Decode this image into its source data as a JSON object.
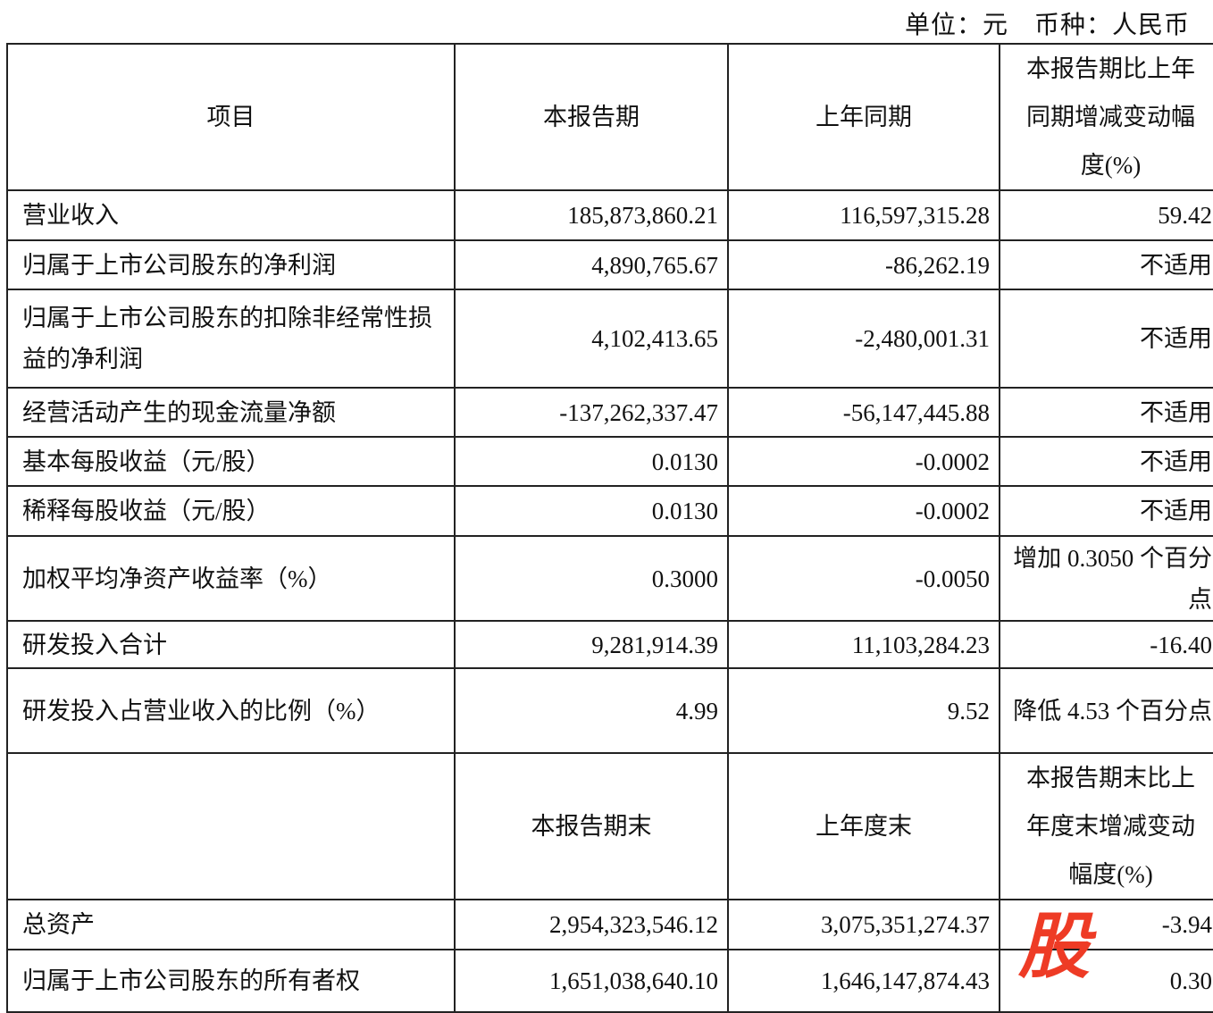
{
  "unit_line": "单位：元　币种：人民币",
  "headers": [
    "项目",
    "本报告期",
    "上年同期",
    "本报告期比上年同期增减变动幅度(%)"
  ],
  "rows": [
    [
      "营业收入",
      "185,873,860.21",
      "116,597,315.28",
      "59.42"
    ],
    [
      "归属于上市公司股东的净利润",
      "4,890,765.67",
      "-86,262.19",
      "不适用"
    ],
    [
      "归属于上市公司股东的扣除非经常性损益的净利润",
      "4,102,413.65",
      "-2,480,001.31",
      "不适用"
    ],
    [
      "经营活动产生的现金流量净额",
      "-137,262,337.47",
      "-56,147,445.88",
      "不适用"
    ],
    [
      "基本每股收益（元/股）",
      "0.0130",
      "-0.0002",
      "不适用"
    ],
    [
      "稀释每股收益（元/股）",
      "0.0130",
      "-0.0002",
      "不适用"
    ],
    [
      "加权平均净资产收益率（%）",
      "0.3000",
      "-0.0050",
      "增加 0.3050 个百分点"
    ],
    [
      "研发投入合计",
      "9,281,914.39",
      "11,103,284.23",
      "-16.40"
    ],
    [
      "研发投入占营业收入的比例（%）",
      "4.99",
      "9.52",
      "降低 4.53 个百分点"
    ]
  ],
  "headers2": [
    "",
    "本报告期末",
    "上年度末",
    "本报告期末比上年度末增减变动幅度(%)"
  ],
  "rows2": [
    [
      "总资产",
      "2,954,323,546.12",
      "3,075,351,274.37",
      "-3.94"
    ],
    [
      "归属于上市公司股东的所有者权",
      "1,651,038,640.10",
      "1,646,147,874.43",
      "0.30"
    ]
  ],
  "watermark": "股",
  "watermark_color": "#ee3b25"
}
